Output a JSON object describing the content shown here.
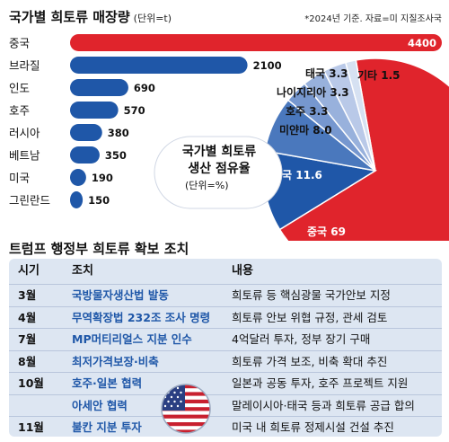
{
  "title": "국가별 희토류 매장량",
  "unit": "(단위=t)",
  "note": "*2024년 기준. 자료=미 지질조사국",
  "chart_data": [
    {
      "type": "bar",
      "categories": [
        "중국",
        "브라질",
        "인도",
        "호주",
        "러시아",
        "베트남",
        "미국",
        "그린란드"
      ],
      "values": [
        4400,
        2100,
        690,
        570,
        380,
        350,
        190,
        150
      ],
      "value_labels": [
        "4400",
        "2100",
        "690",
        "570",
        "380",
        "350",
        "190",
        "150"
      ],
      "title": "국가별 희토류 매장량",
      "xlabel": "",
      "ylabel": "",
      "colors": {
        "highlight": "#e0242c",
        "bar": "#1f57a8"
      }
    },
    {
      "type": "pie",
      "title": "국가별 희토류 생산 점유율",
      "unit": "(단위=%)",
      "slices": [
        {
          "label": "중국",
          "value": 69,
          "text": "중국 69",
          "color": "#e0242c"
        },
        {
          "label": "미국",
          "value": 11.6,
          "text": "미국 11.6",
          "color": "#1f57a8"
        },
        {
          "label": "미얀마",
          "value": 8.0,
          "text": "미얀마 8.0",
          "color": "#4a78bd"
        },
        {
          "label": "호주",
          "value": 3.3,
          "text": "호주 3.3",
          "color": "#7697cf"
        },
        {
          "label": "나이지리아",
          "value": 3.3,
          "text": "나이지리아 3.3",
          "color": "#98b1dc"
        },
        {
          "label": "태국",
          "value": 3.3,
          "text": "태국 3.3",
          "color": "#b9c9e8"
        },
        {
          "label": "기타",
          "value": 1.5,
          "text": "기타 1.5",
          "color": "#d6e1f2"
        }
      ]
    }
  ],
  "section2": {
    "title": "트럼프 행정부 희토류 확보 조치",
    "headers": {
      "month": "시기",
      "action": "조치",
      "desc": "내용"
    },
    "rows": [
      {
        "month": "3월",
        "action": "국방물자생산법 발동",
        "desc": "희토류 등 핵심광물 국가안보 지정"
      },
      {
        "month": "4월",
        "action": "무역확장법 232조 조사 명령",
        "desc": "희토류 안보 위협 규정, 관세 검토"
      },
      {
        "month": "7월",
        "action": "MP머티리얼스 지분 인수",
        "desc": "4억달러 투자, 정부 장기 구매"
      },
      {
        "month": "8월",
        "action": "최저가격보장·비축",
        "desc": "희토류 가격 보조, 비축 확대 추진"
      },
      {
        "month": "10월",
        "action": "호주·일본 협력",
        "desc": "일본과 공동 투자, 호주 프로젝트 지원"
      },
      {
        "month": "",
        "action": "아세안 협력",
        "desc": "말레이시아·태국 등과 희토류 공급 합의"
      },
      {
        "month": "11월",
        "action": "불칸 지분 투자",
        "desc": "미국 내 희토류 정제시설 건설 추진"
      }
    ]
  },
  "icons": {
    "flag": "us-flag-icon"
  }
}
